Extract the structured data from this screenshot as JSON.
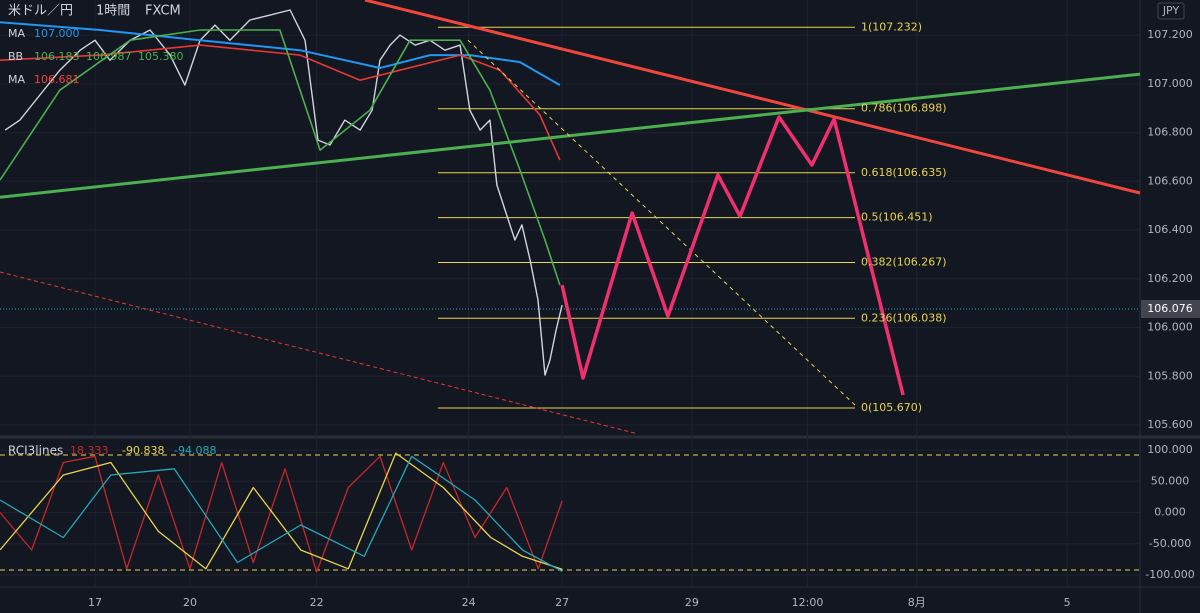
{
  "chart_data": [
    {
      "type": "line",
      "symbol": "米ドル／円",
      "interval": "1時間",
      "source": "FXCM",
      "currency": "JPY",
      "indicators": [
        {
          "name": "MA",
          "color": "#2196f3",
          "values": [
            107.0
          ],
          "value_labels": [
            "107.000"
          ]
        },
        {
          "name": "BB",
          "color": "#4caf50",
          "values": [
            106.183,
            106.987,
            105.38
          ],
          "value_labels": [
            "106.183",
            "106.987",
            "105.380"
          ]
        },
        {
          "name": "MA",
          "color": "#f44336",
          "values": [
            106.681
          ],
          "value_labels": [
            "106.681"
          ]
        }
      ],
      "last_price": {
        "value": 106.076,
        "label": "106.076"
      },
      "xlim": [
        0,
        360
      ],
      "ylim": [
        105.559,
        107.344
      ],
      "xticks": [
        {
          "value": 30,
          "label": "17"
        },
        {
          "value": 60,
          "label": "20"
        },
        {
          "value": 100,
          "label": "22"
        },
        {
          "value": 148,
          "label": "24"
        },
        {
          "value": 177.5,
          "label": "27"
        },
        {
          "value": 218.5,
          "label": "29"
        },
        {
          "value": 255,
          "label": "12:00"
        },
        {
          "value": 289.5,
          "label": "8月"
        },
        {
          "value": 337,
          "label": "5"
        }
      ],
      "yticks": [
        {
          "value": 105.6,
          "label": "105.600"
        },
        {
          "value": 105.8,
          "label": "105.800"
        },
        {
          "value": 106.0,
          "label": "106.000"
        },
        {
          "value": 106.2,
          "label": "106.200"
        },
        {
          "value": 106.4,
          "label": "106.400"
        },
        {
          "value": 106.6,
          "label": "106.600"
        },
        {
          "value": 106.8,
          "label": "106.800"
        },
        {
          "value": 107.0,
          "label": "107.000"
        },
        {
          "value": 107.2,
          "label": "107.200"
        }
      ],
      "grid": true,
      "fib_x": [
        138.3,
        270
      ],
      "fib_levels": [
        {
          "label": "1(107.232)",
          "value": 107.232
        },
        {
          "label": "0.786(106.898)",
          "value": 106.898
        },
        {
          "label": "0.618(106.635)",
          "value": 106.635
        },
        {
          "label": "0.5(106.451)",
          "value": 106.451
        },
        {
          "label": "0.382(106.267)",
          "value": 106.267
        },
        {
          "label": "0.236(106.038)",
          "value": 106.038
        },
        {
          "label": "0(105.670)",
          "value": 105.67
        }
      ],
      "fib_color": "#e8d44d",
      "series": [
        {
          "color": "#d1d4dc",
          "width": 1.4,
          "x": [
            1.6,
            6.3,
            12.6,
            18.9,
            25.3,
            30,
            34.7,
            41.1,
            47.4,
            53.7,
            58.4,
            63.2,
            67.9,
            72.6,
            78.9,
            85.3,
            91.6,
            96.3,
            100.4,
            104.2,
            108.9,
            113.7,
            117.5,
            120,
            123.2,
            126.3,
            131.1,
            135.8,
            140.5,
            145.3,
            148.4,
            151.6,
            154.7,
            156.9,
            159.5,
            162.6,
            164.8,
            167.4,
            169.9,
            172.1,
            173.7,
            175.6,
            177.5
          ],
          "values": [
            106.81,
            106.851,
            106.954,
            107.056,
            107.138,
            107.179,
            107.097,
            107.179,
            107.221,
            107.118,
            106.995,
            107.179,
            107.241,
            107.179,
            107.262,
            107.282,
            107.303,
            107.179,
            106.769,
            106.749,
            106.851,
            106.81,
            106.892,
            107.097,
            107.159,
            107.2,
            107.159,
            107.179,
            107.138,
            107.159,
            106.892,
            106.81,
            106.851,
            106.585,
            106.482,
            106.359,
            106.421,
            106.277,
            106.113,
            105.805,
            105.867,
            105.99,
            106.092
          ]
        },
        {
          "color": "#2196f3",
          "width": 2,
          "x": [
            0,
            31.6,
            63.2,
            94.7,
            120,
            135.8,
            148.4,
            164.2,
            176.8
          ],
          "values": [
            107.253,
            107.221,
            107.179,
            107.138,
            107.065,
            107.118,
            107.118,
            107.089,
            106.995
          ]
        },
        {
          "color": "#e53935",
          "width": 1.6,
          "x": [
            0,
            31.6,
            63.2,
            94.7,
            113.7,
            126.3,
            145.3,
            157.9,
            170.5,
            176.8
          ],
          "values": [
            107.097,
            107.118,
            107.159,
            107.118,
            107.015,
            107.056,
            107.118,
            107.056,
            106.872,
            106.687
          ]
        },
        {
          "color": "#4caf50",
          "width": 1.6,
          "x": [
            0,
            18.9,
            41.1,
            63.2,
            88.4,
            101.1,
            116.8,
            129.5,
            145.3,
            154.7,
            164.2,
            172.1,
            176.8
          ],
          "values": [
            106.605,
            106.974,
            107.179,
            107.221,
            107.221,
            106.728,
            106.892,
            107.179,
            107.179,
            106.974,
            106.646,
            106.359,
            106.174
          ]
        },
        {
          "color": "#f0463c",
          "width": 3,
          "x": [
            115.3,
            360
          ],
          "values": [
            107.344,
            106.552
          ]
        },
        {
          "color": "#4caf50",
          "width": 3,
          "x": [
            0,
            360
          ],
          "values": [
            106.535,
            107.04
          ]
        },
        {
          "color": "#e53935",
          "width": 1,
          "dash": "4 3",
          "x": [
            0,
            200.5
          ],
          "values": [
            106.228,
            105.567
          ]
        },
        {
          "color": "#e8d44d",
          "width": 1,
          "dash": "4 4",
          "x": [
            147.8,
            270
          ],
          "values": [
            107.179,
            105.682
          ]
        },
        {
          "color": "#f0306e",
          "width": 3.5,
          "x": [
            177.5,
            184.1,
            199.6,
            210.9,
            226.7,
            233.7,
            246,
            256.4,
            263.4,
            285.2
          ],
          "values": [
            106.174,
            105.793,
            106.47,
            106.047,
            106.626,
            106.457,
            106.864,
            106.667,
            106.855,
            105.723
          ]
        }
      ]
    },
    {
      "type": "line",
      "title": "RCI3lines",
      "ylim": [
        -116,
        116
      ],
      "yticks": [
        {
          "value": 100,
          "label": "100.000"
        },
        {
          "value": 50,
          "label": "50.000"
        },
        {
          "value": 0,
          "label": "0.000"
        },
        {
          "value": -50,
          "label": "-50.000"
        },
        {
          "value": -100,
          "label": "-100.000"
        }
      ],
      "bands": [
        92,
        -92
      ],
      "band_color": "#e8d44d",
      "series": [
        {
          "color": "#c62828",
          "value_label": "18.333",
          "x": [
            0,
            10,
            20,
            30,
            40,
            50,
            60,
            70,
            80,
            90,
            100,
            110,
            120,
            130,
            140,
            150,
            160,
            170,
            177.5
          ],
          "values": [
            0,
            -60,
            80,
            90,
            -90,
            60,
            -90,
            80,
            -80,
            70,
            -95,
            40,
            90,
            -60,
            80,
            -40,
            40,
            -90,
            18.333
          ]
        },
        {
          "color": "#e8d44d",
          "value_label": "-90.838",
          "x": [
            0,
            20,
            35,
            50,
            65,
            80,
            95,
            110,
            125,
            140,
            155,
            165,
            177.5
          ],
          "values": [
            -60,
            60,
            80,
            -30,
            -90,
            40,
            -60,
            -90,
            95,
            40,
            -40,
            -70,
            -90.838
          ]
        },
        {
          "color": "#26a6b8",
          "value_label": "-94.088",
          "x": [
            0,
            20,
            35,
            55,
            75,
            95,
            115,
            130,
            150,
            165,
            177.5
          ],
          "values": [
            20,
            -40,
            60,
            70,
            -80,
            -20,
            -70,
            90,
            20,
            -60,
            -94.088
          ]
        }
      ]
    }
  ]
}
